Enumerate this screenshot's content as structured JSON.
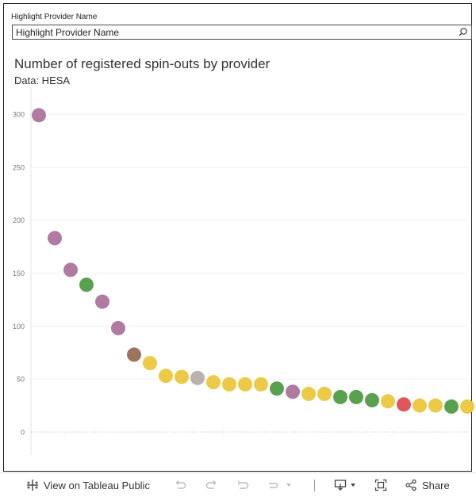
{
  "filter": {
    "label": "Highlight Provider Name",
    "value": "Highlight Provider Name",
    "icon": "search-icon"
  },
  "chart_title": "Number of registered spin-outs by provider",
  "chart_subtitle": "Data: HESA",
  "chart_data": {
    "type": "scatter",
    "title": "Number of registered spin-outs by provider",
    "subtitle": "Data: HESA",
    "xlabel": "",
    "ylabel": "",
    "ylim": [
      -20,
      320
    ],
    "yticks": [
      0,
      50,
      100,
      150,
      200,
      250,
      300
    ],
    "grid": true,
    "colors": {
      "purple": "#b07aa1",
      "green": "#59a14f",
      "brown": "#9c755f",
      "yellow": "#edc948",
      "grey": "#bab0ac",
      "red": "#e15759"
    },
    "points": [
      {
        "rank": 1,
        "value": 299,
        "color": "purple"
      },
      {
        "rank": 2,
        "value": 183,
        "color": "purple"
      },
      {
        "rank": 3,
        "value": 153,
        "color": "purple"
      },
      {
        "rank": 4,
        "value": 139,
        "color": "green"
      },
      {
        "rank": 5,
        "value": 123,
        "color": "purple"
      },
      {
        "rank": 6,
        "value": 98,
        "color": "purple"
      },
      {
        "rank": 7,
        "value": 73,
        "color": "brown"
      },
      {
        "rank": 8,
        "value": 65,
        "color": "yellow"
      },
      {
        "rank": 9,
        "value": 53,
        "color": "yellow"
      },
      {
        "rank": 10,
        "value": 52,
        "color": "yellow"
      },
      {
        "rank": 11,
        "value": 51,
        "color": "grey"
      },
      {
        "rank": 12,
        "value": 47,
        "color": "yellow"
      },
      {
        "rank": 13,
        "value": 45,
        "color": "yellow"
      },
      {
        "rank": 14,
        "value": 45,
        "color": "yellow"
      },
      {
        "rank": 15,
        "value": 45,
        "color": "yellow"
      },
      {
        "rank": 16,
        "value": 41,
        "color": "green"
      },
      {
        "rank": 17,
        "value": 38,
        "color": "purple"
      },
      {
        "rank": 18,
        "value": 36,
        "color": "yellow"
      },
      {
        "rank": 19,
        "value": 36,
        "color": "yellow"
      },
      {
        "rank": 20,
        "value": 33,
        "color": "green"
      },
      {
        "rank": 21,
        "value": 33,
        "color": "green"
      },
      {
        "rank": 22,
        "value": 30,
        "color": "green"
      },
      {
        "rank": 23,
        "value": 29,
        "color": "yellow"
      },
      {
        "rank": 24,
        "value": 26,
        "color": "red"
      },
      {
        "rank": 25,
        "value": 25,
        "color": "yellow"
      },
      {
        "rank": 26,
        "value": 25,
        "color": "yellow"
      },
      {
        "rank": 27,
        "value": 24,
        "color": "green"
      },
      {
        "rank": 28,
        "value": 24,
        "color": "yellow"
      }
    ]
  },
  "toolbar": {
    "view_label": "View on Tableau Public",
    "share_label": "Share"
  }
}
